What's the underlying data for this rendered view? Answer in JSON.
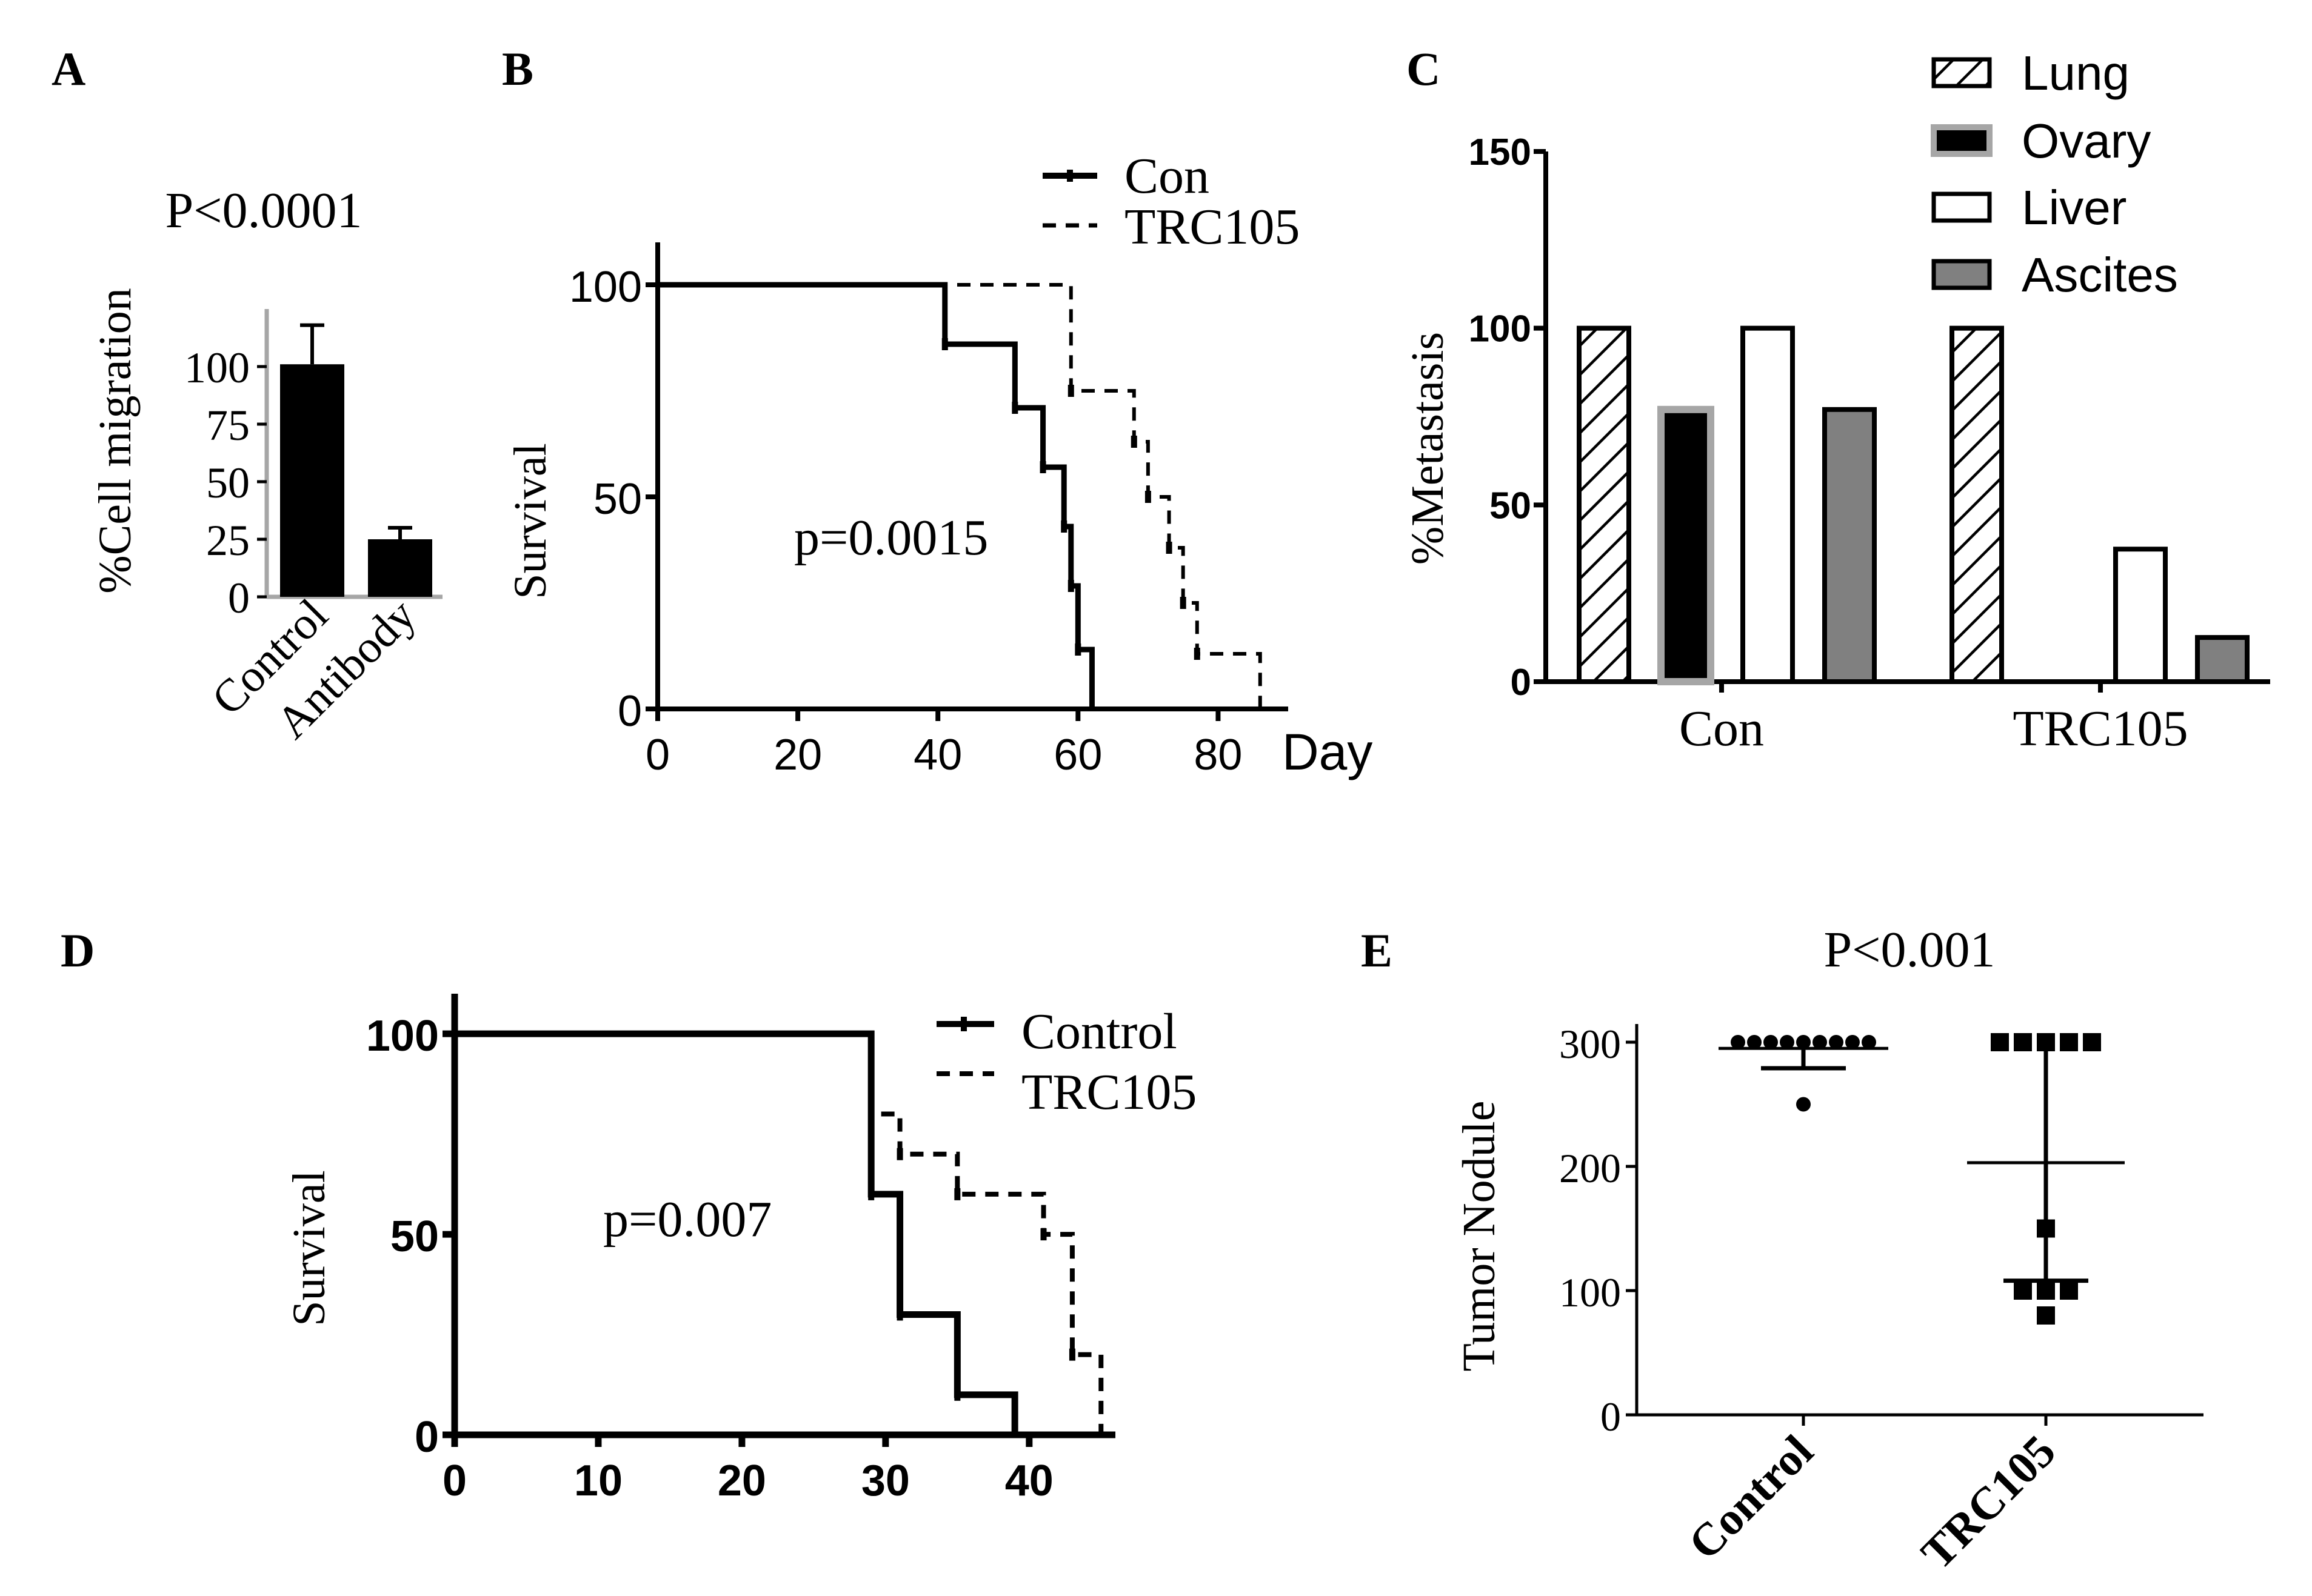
{
  "colors": {
    "ink": "#000000",
    "frame": "#a6a6a6",
    "bar_fill": "#000000",
    "ascites_fill": "#808080",
    "ovary_edge": "#a6a6a6"
  },
  "chart_data": [
    {
      "panel": "A",
      "type": "bar",
      "title": "P<0.0001",
      "xlabel": "",
      "ylabel": "%Cell migration",
      "ylim": [
        0,
        125
      ],
      "yticks": [
        "0",
        "25",
        "50",
        "75",
        "100"
      ],
      "categories": [
        "Control",
        "Antibody"
      ],
      "values": [
        101,
        25
      ],
      "errors": [
        17,
        5
      ]
    },
    {
      "panel": "B",
      "type": "line",
      "title": "",
      "xlabel": "Day",
      "ylabel": "Survival",
      "xlim": [
        0,
        90
      ],
      "ylim": [
        0,
        110
      ],
      "xticks": [
        "0",
        "20",
        "40",
        "60",
        "80"
      ],
      "yticks": [
        "0",
        "50",
        "100"
      ],
      "annotation": "p=0.0015",
      "series": [
        {
          "name": "Con",
          "style": "solid",
          "x": [
            0,
            41,
            41,
            51,
            51,
            55,
            55,
            58,
            58,
            59,
            59,
            60,
            60,
            62,
            62
          ],
          "y": [
            100,
            100,
            86,
            86,
            71,
            71,
            57,
            57,
            43,
            43,
            29,
            29,
            14,
            14,
            0
          ]
        },
        {
          "name": "TRC105",
          "style": "dashed",
          "x": [
            0,
            59,
            59,
            68,
            68,
            70,
            70,
            73,
            73,
            75,
            75,
            77,
            77,
            86,
            86
          ],
          "y": [
            100,
            100,
            75,
            75,
            63,
            63,
            50,
            50,
            38,
            38,
            25,
            25,
            13,
            13,
            0
          ]
        }
      ]
    },
    {
      "panel": "C",
      "type": "bar",
      "title": "",
      "xlabel": "",
      "ylabel": "%Metastasis",
      "ylim": [
        0,
        150
      ],
      "yticks": [
        "0",
        "50",
        "100",
        "150"
      ],
      "categories": [
        "Con",
        "TRC105"
      ],
      "series": [
        {
          "name": "Lung",
          "fill": "hatch",
          "values": [
            100,
            100
          ]
        },
        {
          "name": "Ovary",
          "fill": "black",
          "values": [
            77,
            0
          ]
        },
        {
          "name": "Liver",
          "fill": "white",
          "values": [
            100,
            37.5
          ]
        },
        {
          "name": "Ascites",
          "fill": "gray",
          "values": [
            77,
            12.5
          ]
        }
      ]
    },
    {
      "panel": "D",
      "type": "line",
      "title": "",
      "xlabel": "",
      "ylabel": "Survival",
      "xlim": [
        0,
        46
      ],
      "ylim": [
        0,
        110
      ],
      "xticks": [
        "0",
        "10",
        "20",
        "30",
        "40"
      ],
      "yticks": [
        "0",
        "50",
        "100"
      ],
      "annotation": "p=0.007",
      "series": [
        {
          "name": "Control",
          "style": "solid",
          "x": [
            0,
            29,
            29,
            31,
            31,
            35,
            35,
            39,
            39
          ],
          "y": [
            100,
            100,
            60,
            60,
            30,
            30,
            10,
            10,
            0
          ]
        },
        {
          "name": "TRC105",
          "style": "dashed",
          "x": [
            0,
            29,
            29,
            31,
            31,
            35,
            35,
            41,
            41,
            43,
            43,
            44,
            44,
            45,
            45
          ],
          "y": [
            100,
            100,
            80,
            80,
            70,
            70,
            60,
            60,
            50,
            50,
            20,
            20,
            20,
            20,
            0
          ]
        }
      ]
    },
    {
      "panel": "E",
      "type": "scatter",
      "title": "P<0.001",
      "xlabel": "",
      "ylabel": "Tumor Nodule",
      "ylim": [
        0,
        300
      ],
      "yticks": [
        "0",
        "100",
        "200",
        "300"
      ],
      "categories": [
        "Control",
        "TRC105"
      ],
      "points": [
        [
          300,
          300,
          300,
          300,
          300,
          300,
          300,
          300,
          300,
          250
        ],
        [
          300,
          300,
          300,
          300,
          300,
          150,
          100,
          100,
          100,
          80
        ]
      ],
      "means": [
        295,
        203
      ],
      "errors": [
        16,
        95
      ]
    }
  ]
}
